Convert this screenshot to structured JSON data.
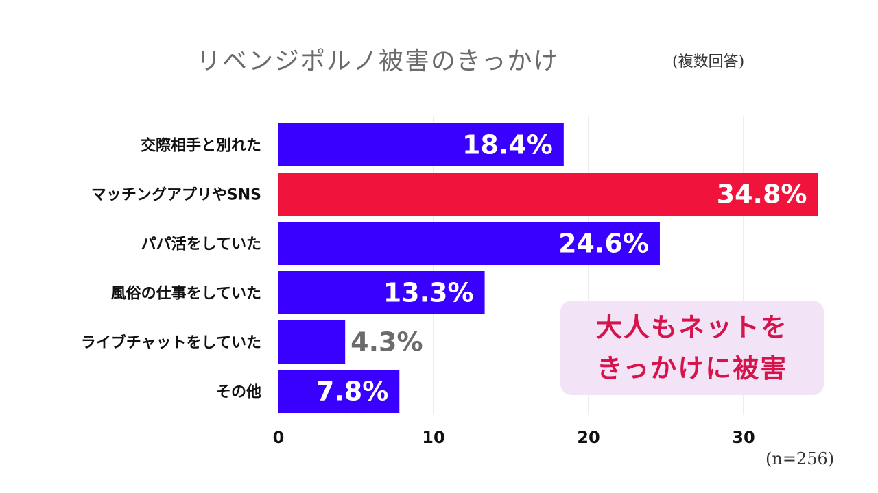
{
  "title": "リベンジポルノ被害のきっかけ",
  "subtitle": "(複数回答)",
  "sample_note": "(n=256)",
  "callout": {
    "lines": [
      "大人もネットを",
      "きっかけに被害"
    ],
    "text_color": "#d6134a",
    "bg_color": "#f3e3f7"
  },
  "colors": {
    "bar": "#3a00ff",
    "highlight": "#f0143c",
    "grid": "#d9d9d9",
    "axis_text": "#111111",
    "value_inside": "#ffffff",
    "value_outside": "#6b6b6b"
  },
  "chart_data": {
    "type": "bar",
    "orientation": "horizontal",
    "categories": [
      "交際相手と別れた",
      "マッチングアプリやSNS",
      "パパ活をしていた",
      "風俗の仕事をしていた",
      "ライブチャットをしていた",
      "その他"
    ],
    "values": [
      18.4,
      34.8,
      24.6,
      13.3,
      4.3,
      7.8
    ],
    "value_labels": [
      "18.4%",
      "34.8%",
      "24.6%",
      "13.3%",
      "4.3%",
      "7.8%"
    ],
    "highlight_index": 1,
    "xlim": [
      0,
      35
    ],
    "xticks": [
      0,
      10,
      20,
      30
    ],
    "grid": true
  }
}
